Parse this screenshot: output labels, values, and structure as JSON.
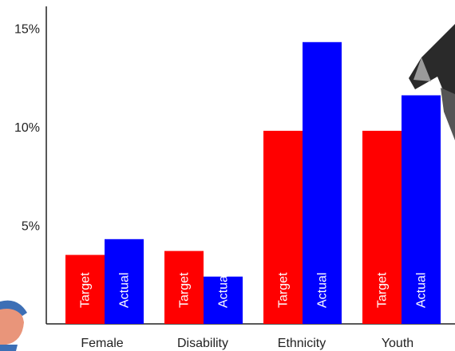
{
  "chart_data": {
    "type": "bar",
    "categories": [
      "Female",
      "Disability",
      "Ethnicity",
      "Youth"
    ],
    "series": [
      {
        "name": "Target",
        "color": "#ff0000",
        "values": [
          3.5,
          3.7,
          9.8,
          9.8
        ],
        "bar_labels": [
          "Target",
          "Target",
          "Target",
          "Target"
        ]
      },
      {
        "name": "Actual",
        "color": "#0000ff",
        "values": [
          4.3,
          2.4,
          14.3,
          11.6
        ],
        "bar_labels": [
          "Actual",
          "Actual",
          "Actual",
          "Actual"
        ]
      }
    ],
    "y_ticks": [
      {
        "value": 5,
        "label": "5%"
      },
      {
        "value": 10,
        "label": "10%"
      },
      {
        "value": 15,
        "label": "15%"
      }
    ],
    "ylim": [
      0,
      15.8
    ],
    "grid": false,
    "title": "",
    "xlabel": "",
    "ylabel": ""
  },
  "decorations": {
    "right_edge_icon": "partial-megaphone-graphic",
    "left_edge_icon": "partial-cartoon-face-graphic"
  }
}
